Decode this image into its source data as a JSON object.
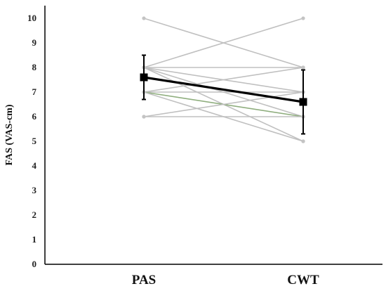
{
  "chart_data": {
    "type": "line",
    "ylabel": "FAS (VAS-cm)",
    "xlabel": "",
    "categories": [
      "PAS",
      "CWT"
    ],
    "ylim": [
      0,
      10
    ],
    "yticks": [
      "0",
      "1",
      "2",
      "3",
      "4",
      "5",
      "6",
      "7",
      "8",
      "9",
      "10"
    ],
    "grid": false,
    "individual_series": [
      {
        "values": [
          10,
          8
        ],
        "color": "#c0c0c0"
      },
      {
        "values": [
          8,
          10
        ],
        "color": "#c0c0c0"
      },
      {
        "values": [
          8,
          8
        ],
        "color": "#c0c0c0"
      },
      {
        "values": [
          8,
          7
        ],
        "color": "#c0c0c0"
      },
      {
        "values": [
          8,
          6
        ],
        "color": "#c0c0c0"
      },
      {
        "values": [
          8,
          5
        ],
        "color": "#c0c0c0"
      },
      {
        "values": [
          7,
          8
        ],
        "color": "#c0c0c0"
      },
      {
        "values": [
          7,
          7
        ],
        "color": "#c0c0c0"
      },
      {
        "values": [
          7,
          6
        ],
        "color": "#8fae7e"
      },
      {
        "values": [
          7,
          5
        ],
        "color": "#c0c0c0"
      },
      {
        "values": [
          6,
          7
        ],
        "color": "#c0c0c0"
      },
      {
        "values": [
          6,
          6
        ],
        "color": "#c0c0c0"
      }
    ],
    "mean_series": {
      "values": [
        7.6,
        6.6
      ],
      "error": [
        0.9,
        1.3
      ],
      "color": "#000000"
    }
  }
}
